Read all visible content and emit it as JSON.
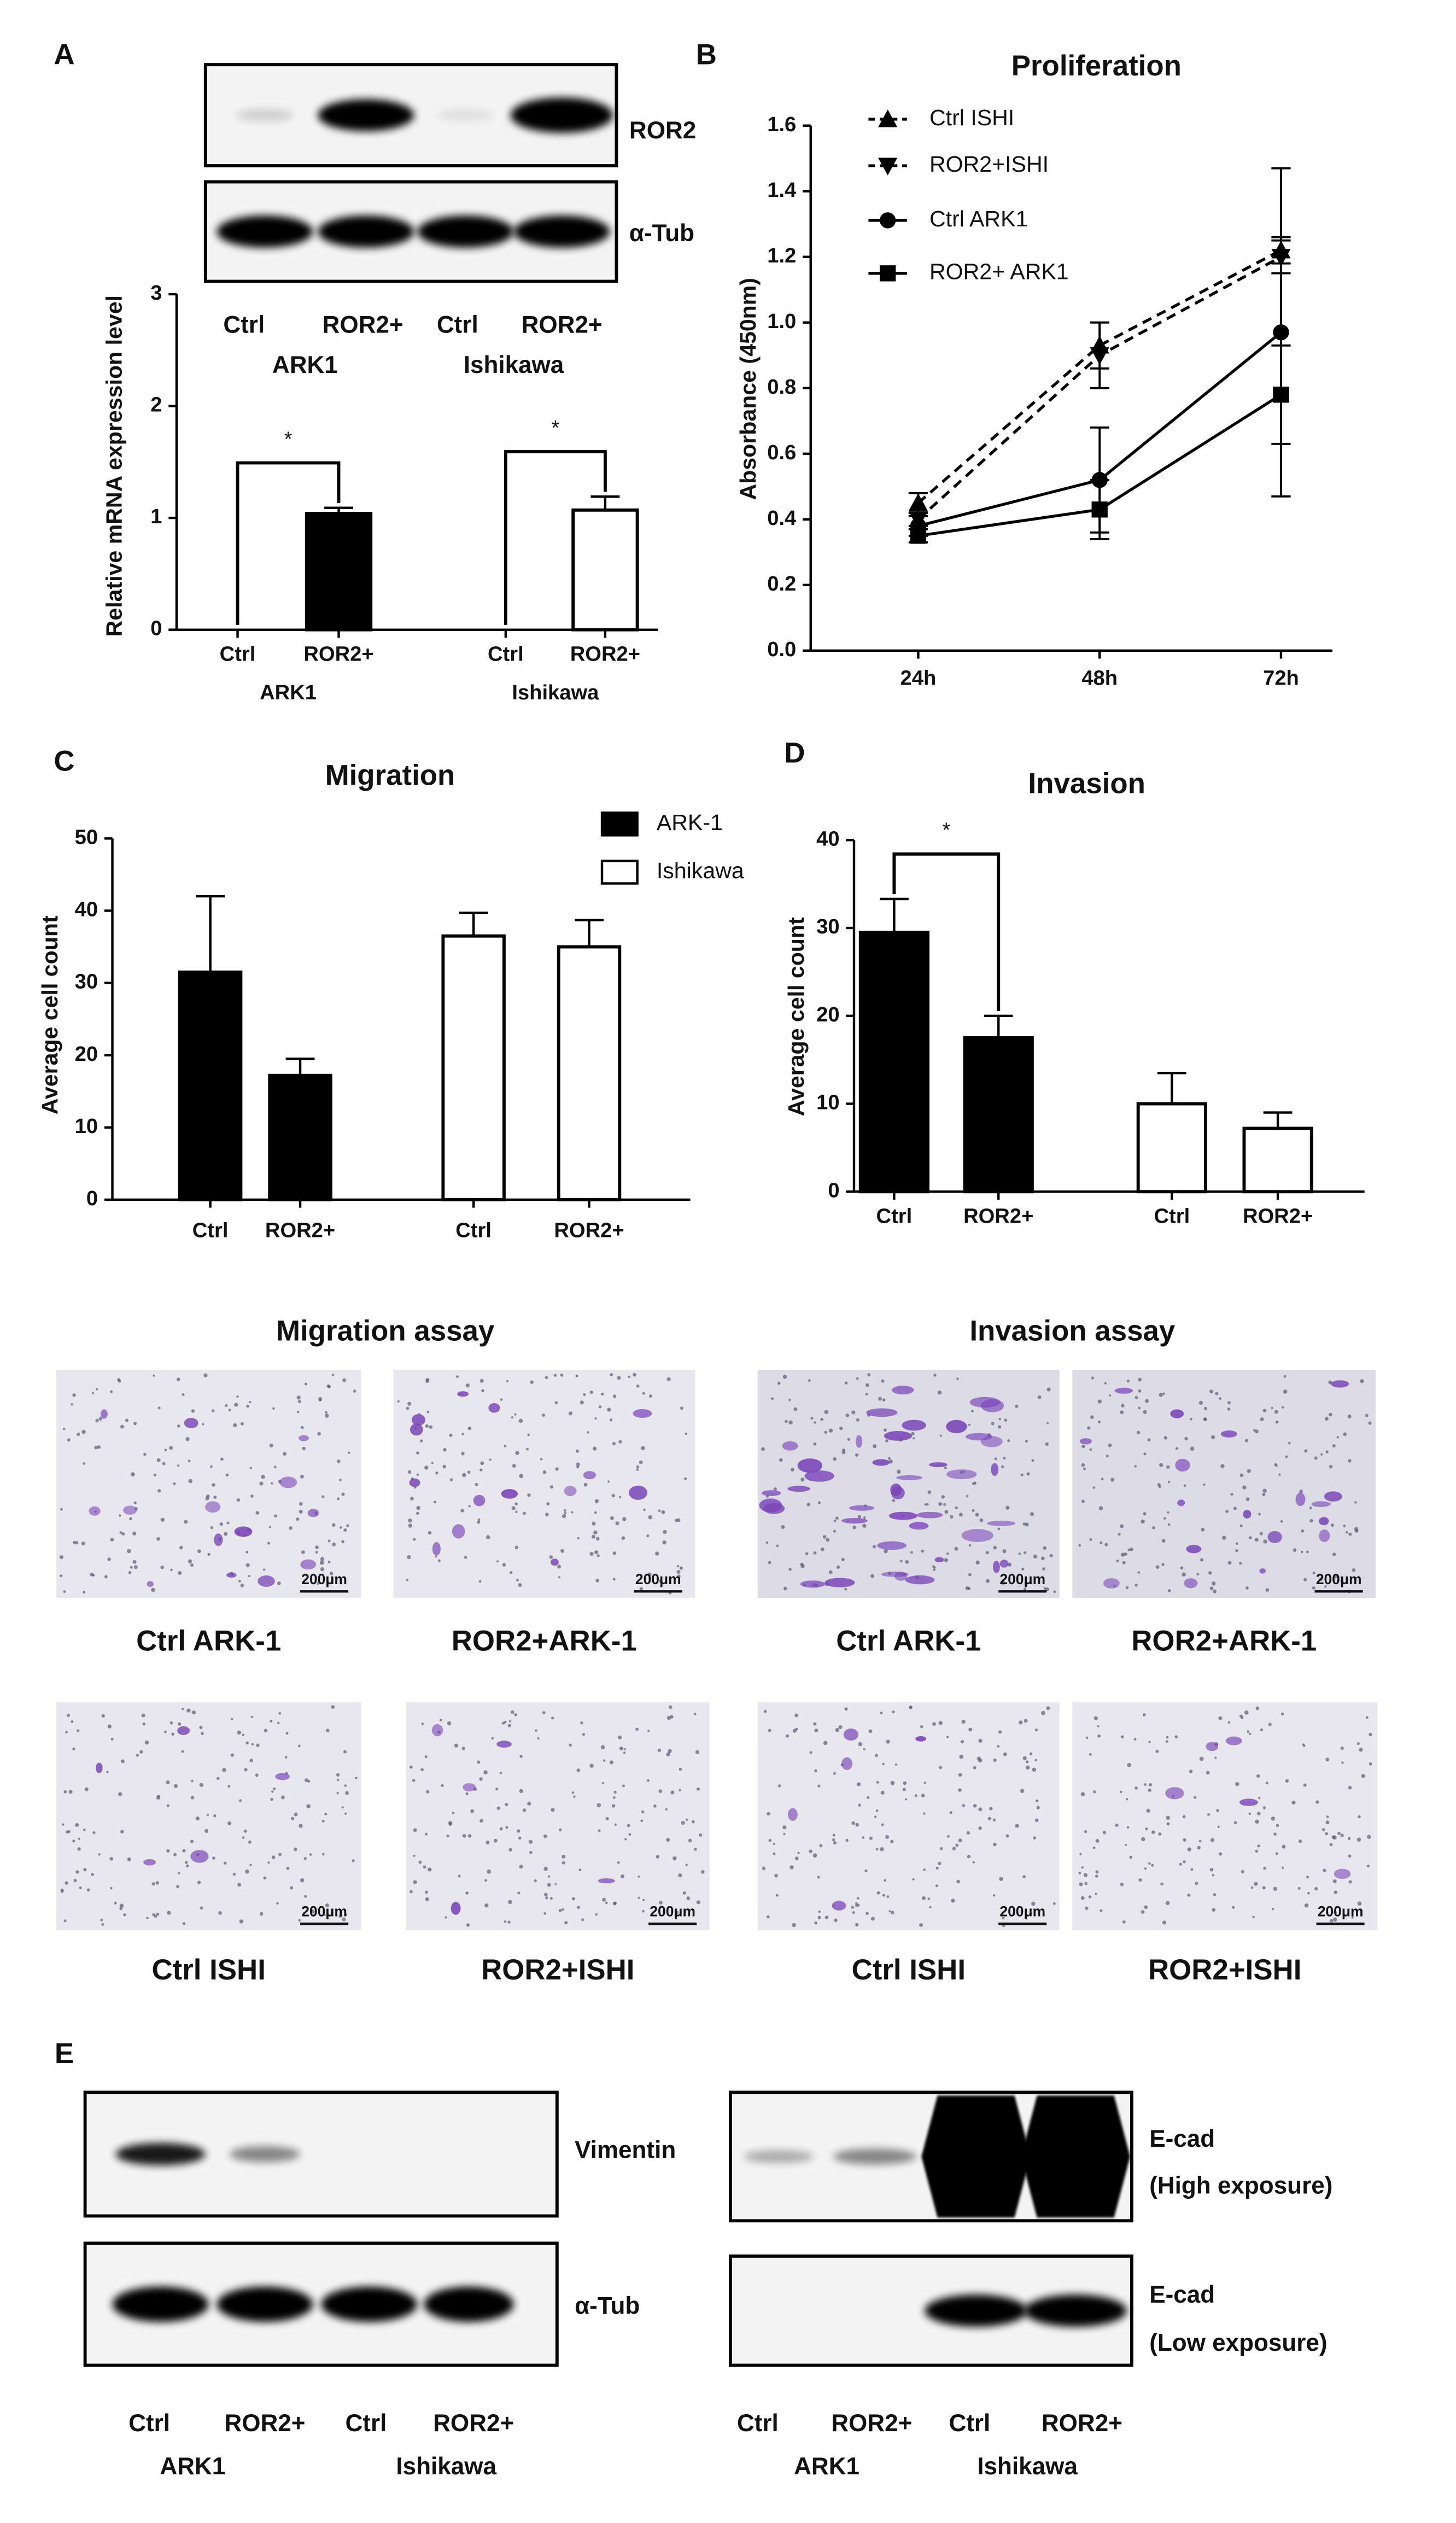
{
  "panel_labels": [
    "A",
    "B",
    "C",
    "D",
    "E"
  ],
  "blots": [
    {
      "lanes": [
        "Ctrl",
        "ROR2+",
        "Ctrl",
        "ROR2+"
      ],
      "groups": [
        "ARK1",
        "Ishikawa"
      ],
      "rows": [
        {
          "label": "ROR2"
        },
        {
          "label": "α-Tub"
        }
      ]
    },
    {
      "lanes": [
        "Ctrl",
        "ROR2+",
        "Ctrl",
        "ROR2+"
      ],
      "groups": [
        "ARK1",
        "Ishikawa"
      ],
      "rows": [
        {
          "label": "Vimentin"
        },
        {
          "label": "α-Tub"
        }
      ]
    },
    {
      "lanes": [
        "Ctrl",
        "ROR2+",
        "Ctrl",
        "ROR2+"
      ],
      "groups": [
        "ARK1",
        "Ishikawa"
      ],
      "rows": [
        {
          "label": "E-cad",
          "note": "(High exposure)"
        },
        {
          "label": "E-cad",
          "note": "(Low exposure)"
        }
      ]
    }
  ],
  "chart_data": [
    {
      "type": "bar",
      "y_label": "Relative mRNA expression level",
      "categories": [
        "Ctrl",
        "ROR2+",
        "Ctrl",
        "ROR2+"
      ],
      "groups": [
        "ARK1",
        "Ishikawa"
      ],
      "ylim": [
        0,
        3
      ],
      "yticks": [
        0,
        1,
        2,
        3
      ],
      "significance": [
        "*",
        "*"
      ],
      "series": [
        {
          "color": "#000000",
          "values": [
            0,
            1.04,
            null,
            null
          ],
          "errors": [
            null,
            0.05,
            null,
            null
          ]
        },
        {
          "color": "#ffffff",
          "values": [
            null,
            null,
            0,
            1.07
          ],
          "errors": [
            null,
            null,
            null,
            0.12
          ]
        }
      ]
    },
    {
      "type": "line",
      "title": "Proliferation",
      "y_label": "Absorbance (450nm)",
      "categories": [
        "24h",
        "48h",
        "72h"
      ],
      "ylim": [
        0,
        1.6
      ],
      "yticks": [
        {
          "value": 0,
          "label": "0.0"
        },
        0.2,
        0.4,
        0.6,
        0.8,
        {
          "value": 1,
          "label": "1.0"
        },
        1.2,
        1.4,
        1.6
      ],
      "legend": "upper left",
      "series": [
        {
          "name": "Ctrl ISHI",
          "color": "#000000",
          "dash": true,
          "marker": "triangle-up",
          "values": [
            0.45,
            0.93,
            1.22
          ],
          "errors": [
            0.03,
            0.07,
            0.04
          ]
        },
        {
          "name": "ROR2+ISHI",
          "color": "#000000",
          "dash": true,
          "marker": "triangle-down",
          "values": [
            0.4,
            0.9,
            1.2
          ],
          "errors": [
            0.02,
            0.1,
            0.05
          ]
        },
        {
          "name": "Ctrl ARK1",
          "color": "#000000",
          "dash": false,
          "marker": "circle",
          "values": [
            0.38,
            0.52,
            0.97
          ],
          "errors": [
            0.03,
            0.16,
            0.5
          ]
        },
        {
          "name": "ROR2+ ARK1",
          "color": "#000000",
          "dash": false,
          "marker": "square",
          "values": [
            0.35,
            0.43,
            0.78
          ],
          "errors": [
            0.02,
            0.09,
            0.15
          ]
        }
      ]
    },
    {
      "type": "bar",
      "title": "Migration",
      "y_label": "Average cell count",
      "categories": [
        "Ctrl",
        "ROR2+",
        "Ctrl",
        "ROR2+"
      ],
      "ylim": [
        0,
        50
      ],
      "yticks": [
        0,
        10,
        20,
        30,
        40,
        50
      ],
      "legend": "upper right",
      "series": [
        {
          "name": "ARK-1",
          "color": "#000000",
          "values": [
            31.5,
            17.2,
            null,
            null
          ],
          "errors": [
            10.5,
            2.3,
            null,
            null
          ]
        },
        {
          "name": "Ishikawa",
          "color": "#ffffff",
          "values": [
            null,
            null,
            36.5,
            35
          ],
          "errors": [
            null,
            null,
            3.2,
            3.7
          ]
        }
      ]
    },
    {
      "type": "bar",
      "title": "Invasion",
      "y_label": "Average cell count",
      "categories": [
        "Ctrl",
        "ROR2+",
        "Ctrl",
        "ROR2+"
      ],
      "ylim": [
        0,
        40
      ],
      "yticks": [
        0,
        10,
        20,
        30,
        40
      ],
      "significance": [
        "*",
        null
      ],
      "series": [
        {
          "color": "#000000",
          "values": [
            29.5,
            17.5,
            null,
            null
          ],
          "errors": [
            3.8,
            2.5,
            null,
            null
          ]
        },
        {
          "color": "#ffffff",
          "values": [
            null,
            null,
            10,
            7.2
          ],
          "errors": [
            null,
            null,
            3.5,
            1.8
          ]
        }
      ]
    }
  ],
  "micrographs": {
    "headers": [
      "Migration assay",
      "Invasion assay"
    ],
    "panels": [
      {
        "caption": "Ctrl ARK-1",
        "scale_bar": "200μm"
      },
      {
        "caption": "ROR2+ARK-1",
        "scale_bar": "200μm"
      },
      {
        "caption": "Ctrl ARK-1",
        "scale_bar": "200μm"
      },
      {
        "caption": "ROR2+ARK-1",
        "scale_bar": "200μm"
      },
      {
        "caption": "Ctrl ISHI",
        "scale_bar": "200μm"
      },
      {
        "caption": "ROR2+ISHI",
        "scale_bar": "200μm"
      },
      {
        "caption": "Ctrl ISHI",
        "scale_bar": "200μm"
      },
      {
        "caption": "ROR2+ISHI",
        "scale_bar": "200μm"
      }
    ]
  }
}
